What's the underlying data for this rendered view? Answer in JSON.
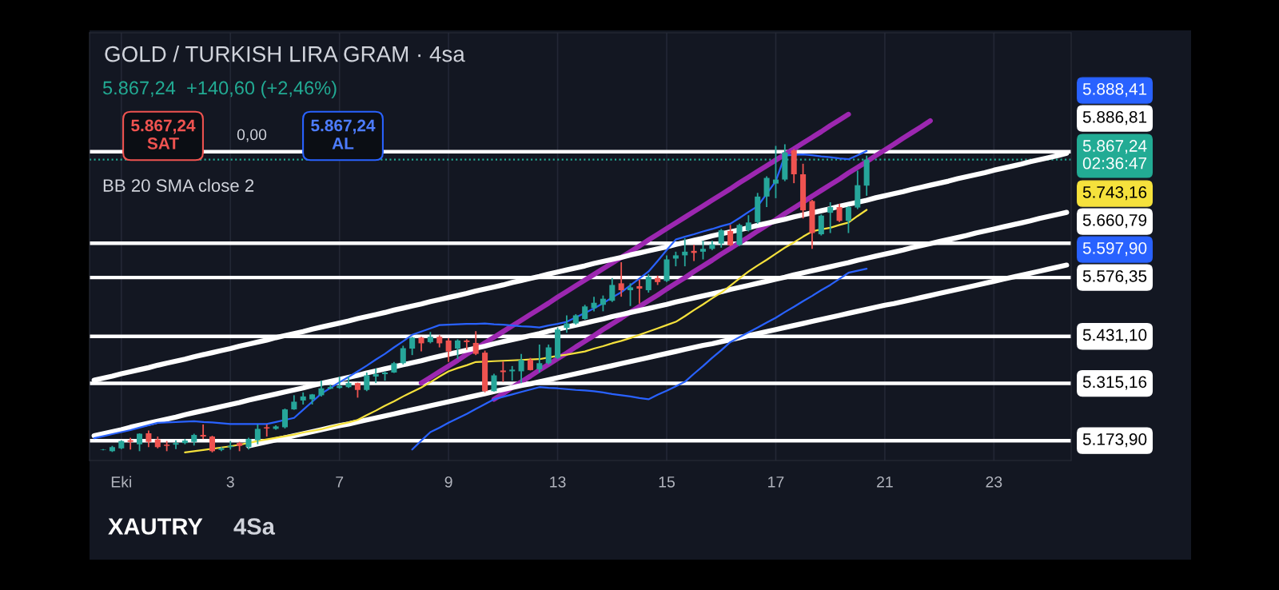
{
  "chart_data": {
    "type": "candlestick",
    "title": "GOLD / TURKISH LIRA GRAM · 4sa",
    "subtitle": "5.867,24  +140,60 (+2,46%)",
    "annotations": [
      "5.867,24\nSAT",
      "0,00",
      "5.867,24\nAL",
      "BB 20 SMA close 2",
      "XAUTRY",
      "4Sa",
      "5.888,41",
      "5.743,16",
      "5.597,90"
    ],
    "categories": [
      null,
      null,
      null,
      "Eki",
      null,
      null,
      null,
      null,
      null,
      null,
      null,
      null,
      null,
      null,
      null,
      "3",
      null,
      null,
      null,
      null,
      null,
      null,
      null,
      null,
      null,
      null,
      null,
      "7",
      null,
      null,
      null,
      null,
      null,
      null,
      null,
      null,
      null,
      null,
      null,
      "9",
      null,
      null,
      null,
      null,
      null,
      null,
      null,
      null,
      null,
      null,
      null,
      "13",
      null,
      null,
      null,
      null,
      null,
      null,
      null,
      null,
      null,
      null,
      null,
      "15",
      null,
      null,
      null,
      null,
      null,
      null,
      null,
      null,
      null,
      null,
      null,
      "17",
      null,
      null,
      null,
      null,
      null,
      null,
      null,
      null,
      null,
      null,
      null,
      "21",
      null,
      null,
      null,
      null,
      null,
      null,
      null,
      null,
      null,
      null,
      null,
      "23",
      null,
      null,
      null,
      null,
      null,
      null,
      null,
      null
    ],
    "ohlc": [
      null,
      [
        5151,
        5153,
        5150,
        5152
      ],
      [
        5148,
        5161,
        5146,
        5158
      ],
      [
        5155,
        5175,
        5153,
        5173
      ],
      [
        5175,
        5181,
        5152,
        5171
      ],
      [
        5165,
        5192,
        5148,
        5191
      ],
      [
        5192,
        5199,
        5158,
        5171
      ],
      [
        5177,
        5184,
        5155,
        5158
      ],
      [
        5164,
        5173,
        5148,
        5161
      ],
      [
        5164,
        5175,
        5153,
        5168
      ],
      [
        5168,
        5178,
        5165,
        5174
      ],
      [
        5171,
        5191,
        5162,
        5188
      ],
      [
        5188,
        5214,
        5178,
        5184
      ],
      [
        5184,
        5186,
        5145,
        5148
      ],
      [
        5151,
        5158,
        5148,
        5155
      ],
      [
        5158,
        5173,
        5152,
        5161
      ],
      [
        5168,
        5171,
        5148,
        5161
      ],
      [
        5158,
        5181,
        5152,
        5178
      ],
      [
        5175,
        5214,
        5165,
        5203
      ],
      [
        5207,
        5214,
        5184,
        5204
      ],
      [
        5203,
        5212,
        5201,
        5209
      ],
      [
        5207,
        5253,
        5204,
        5251
      ],
      [
        5251,
        5286,
        5250,
        5270
      ],
      [
        5273,
        5293,
        5263,
        5283
      ],
      [
        5276,
        5289,
        5263,
        5288
      ],
      [
        5286,
        5322,
        5283,
        5303
      ],
      [
        5302,
        5312,
        5301,
        5306
      ],
      [
        5304,
        5332,
        5302,
        5309
      ],
      [
        5306,
        5332,
        5304,
        5316
      ],
      [
        5316,
        5317,
        5280,
        5299
      ],
      [
        5299,
        5342,
        5296,
        5335
      ],
      [
        5332,
        5352,
        5316,
        5338
      ],
      [
        5338,
        5345,
        5322,
        5342
      ],
      [
        5342,
        5368,
        5341,
        5365
      ],
      [
        5365,
        5408,
        5362,
        5402
      ],
      [
        5401,
        5430,
        5385,
        5428
      ],
      [
        5428,
        5430,
        5394,
        5414
      ],
      [
        5417,
        5442,
        5414,
        5430
      ],
      [
        5430,
        5434,
        5404,
        5414
      ],
      [
        5421,
        5427,
        5368,
        5394
      ],
      [
        5401,
        5424,
        5375,
        5421
      ],
      [
        5421,
        5424,
        5398,
        5417
      ],
      [
        5415,
        5444,
        5385,
        5388
      ],
      [
        5391,
        5396,
        5293,
        5296
      ],
      [
        5296,
        5339,
        5295,
        5335
      ],
      [
        5347,
        5369,
        5319,
        5343
      ],
      [
        5345,
        5358,
        5322,
        5349
      ],
      [
        5345,
        5388,
        5316,
        5373
      ],
      [
        5373,
        5378,
        5347,
        5348
      ],
      [
        5350,
        5411,
        5342,
        5365
      ],
      [
        5365,
        5411,
        5362,
        5404
      ],
      [
        5378,
        5453,
        5375,
        5448
      ],
      [
        5452,
        5483,
        5440,
        5463
      ],
      [
        5463,
        5486,
        5460,
        5483
      ],
      [
        5474,
        5509,
        5472,
        5505
      ],
      [
        5501,
        5529,
        5493,
        5514
      ],
      [
        5509,
        5532,
        5493,
        5524
      ],
      [
        5519,
        5575,
        5516,
        5558
      ],
      [
        5562,
        5614,
        5529,
        5545
      ],
      [
        5545,
        5562,
        5506,
        5552
      ],
      [
        5555,
        5571,
        5512,
        5549
      ],
      [
        5545,
        5585,
        5539,
        5578
      ],
      [
        5575,
        5581,
        5558,
        5565
      ],
      [
        5568,
        5631,
        5565,
        5621
      ],
      [
        5623,
        5640,
        5604,
        5631
      ],
      [
        5631,
        5673,
        5604,
        5640
      ],
      [
        5642,
        5657,
        5617,
        5637
      ],
      [
        5640,
        5667,
        5621,
        5647
      ],
      [
        5647,
        5667,
        5644,
        5658
      ],
      [
        5660,
        5696,
        5650,
        5693
      ],
      [
        5691,
        5706,
        5654,
        5656
      ],
      [
        5657,
        5709,
        5654,
        5706
      ],
      [
        5693,
        5730,
        5690,
        5712
      ],
      [
        5713,
        5785,
        5709,
        5776
      ],
      [
        5776,
        5826,
        5750,
        5822
      ],
      [
        5808,
        5901,
        5772,
        5818
      ],
      [
        5818,
        5905,
        5814,
        5885
      ],
      [
        5890,
        5893,
        5809,
        5831
      ],
      [
        5831,
        5857,
        5722,
        5742
      ],
      [
        5765,
        5768,
        5647,
        5686
      ],
      [
        5683,
        5732,
        5680,
        5729
      ],
      [
        5736,
        5762,
        5686,
        5750
      ],
      [
        5750,
        5758,
        5713,
        5716
      ],
      [
        5716,
        5752,
        5686,
        5750
      ],
      [
        5749,
        5840,
        5745,
        5804
      ],
      [
        5803,
        5877,
        5778,
        5867.24
      ],
      null,
      null,
      null,
      null,
      null,
      null,
      null,
      null,
      null,
      null,
      null,
      null,
      null,
      null,
      null,
      null,
      null,
      null,
      null,
      null,
      null,
      null
    ],
    "colors": [
      null,
      "#26a69a",
      "#26a69a",
      "#26a69a",
      "#ef5350",
      "#26a69a",
      "#ef5350",
      "#ef5350",
      "#ef5350",
      "#26a69a",
      "#26a69a",
      "#26a69a",
      "#ef5350",
      "#ef5350",
      "#26a69a",
      "#26a69a",
      "#ef5350",
      "#26a69a",
      "#26a69a",
      "#ef5350",
      "#26a69a",
      "#26a69a",
      "#26a69a",
      "#26a69a",
      "#26a69a",
      "#26a69a",
      "#26a69a",
      "#26a69a",
      "#26a69a",
      "#ef5350",
      "#26a69a",
      "#26a69a",
      "#26a69a",
      "#26a69a",
      "#26a69a",
      "#26a69a",
      "#ef5350",
      "#26a69a",
      "#ef5350",
      "#ef5350",
      "#26a69a",
      "#ef5350",
      "#ef5350",
      "#ef5350",
      "#26a69a",
      "#ef5350",
      "#26a69a",
      "#26a69a",
      "#ef5350",
      "#26a69a",
      "#26a69a",
      "#26a69a",
      "#26a69a",
      "#26a69a",
      "#26a69a",
      "#26a69a",
      "#26a69a",
      "#26a69a",
      "#ef5350",
      "#26a69a",
      "#ef5350",
      "#26a69a",
      "#ef5350",
      "#26a69a",
      "#26a69a",
      "#26a69a",
      "#ef5350",
      "#26a69a",
      "#26a69a",
      "#26a69a",
      "#ef5350",
      "#26a69a",
      "#26a69a",
      "#26a69a",
      "#26a69a",
      "#26a69a",
      "#26a69a",
      "#ef5350",
      "#ef5350",
      "#ef5350",
      "#26a69a",
      "#26a69a",
      "#ef5350",
      "#26a69a",
      "#26a69a",
      "#26a69a",
      null,
      null,
      null,
      null,
      null,
      null,
      null,
      null,
      null,
      null,
      null,
      null,
      null,
      null,
      null,
      null,
      null,
      null,
      null,
      null,
      null,
      null
    ],
    "series": [
      {
        "type": "line",
        "color": "#2962ff",
        "values": [
          5180,
          5185,
          5190,
          5195,
          5200,
          5206,
          5212,
          5218,
          5219,
          5220,
          5221,
          5222,
          5220,
          5219,
          5217,
          5215,
          5215,
          5215,
          5215,
          5215,
          5220,
          5225,
          5230,
          5250,
          5270,
          5290,
          5304,
          5318,
          5331,
          5345,
          5359,
          5374,
          5388,
          5404,
          5419,
          5435,
          5443,
          5451,
          5459,
          5460,
          5461,
          5462,
          5462,
          5463,
          5461,
          5460,
          5458,
          5456,
          5455,
          5453,
          5458,
          5462,
          5467,
          5478,
          5489,
          5500,
          5513,
          5527,
          5540,
          5557,
          5574,
          5591,
          5617,
          5644,
          5670,
          5677,
          5683,
          5690,
          5696,
          5703,
          5709,
          5723,
          5738,
          5752,
          5783,
          5814,
          5877,
          5879,
          5880,
          5878,
          5875,
          5873,
          5870,
          5868,
          5878,
          5888.41,
          null,
          null,
          null,
          null,
          null,
          null,
          null,
          null,
          null,
          null,
          null,
          null,
          null,
          null,
          null,
          null,
          null,
          null,
          null,
          null,
          null,
          null
        ]
      },
      {
        "type": "line",
        "color": "#f5e13c",
        "values": [
          null,
          null,
          null,
          null,
          null,
          null,
          null,
          null,
          null,
          null,
          5145,
          5148,
          5151,
          5154,
          5157,
          5160,
          5164,
          5168,
          5173,
          5177,
          5181,
          5185,
          5189,
          5194,
          5198,
          5202,
          5208,
          5214,
          5219,
          5225,
          5237,
          5248,
          5260,
          5271,
          5283,
          5294,
          5305,
          5318,
          5332,
          5345,
          5353,
          5360,
          5368,
          5369,
          5370,
          5371,
          5372,
          5373,
          5374,
          5375,
          5379,
          5383,
          5386,
          5390,
          5394,
          5401,
          5407,
          5414,
          5420,
          5427,
          5435,
          5443,
          5451,
          5459,
          5467,
          5481,
          5496,
          5510,
          5525,
          5539,
          5556,
          5574,
          5591,
          5606,
          5620,
          5635,
          5650,
          5663,
          5677,
          5690,
          5695,
          5699,
          5706,
          5712,
          5728,
          5743.16,
          null,
          null,
          null,
          null,
          null,
          null,
          null,
          null,
          null,
          null,
          null,
          null,
          null,
          null,
          null,
          null,
          null,
          null,
          null,
          null,
          null,
          null
        ]
      },
      {
        "type": "line",
        "color": "#2962ff",
        "values": [
          null,
          null,
          null,
          null,
          null,
          null,
          null,
          null,
          null,
          null,
          null,
          null,
          null,
          null,
          null,
          null,
          null,
          null,
          null,
          null,
          null,
          null,
          null,
          null,
          null,
          null,
          null,
          null,
          null,
          null,
          null,
          null,
          null,
          null,
          null,
          5152,
          5174,
          5195,
          5206,
          5218,
          5229,
          5240,
          5252,
          5264,
          5276,
          5282,
          5288,
          5294,
          5300,
          5306,
          5304,
          5303,
          5301,
          5299,
          5298,
          5296,
          5293,
          5289,
          5286,
          5283,
          5279,
          5276,
          5287,
          5297,
          5308,
          5319,
          5339,
          5358,
          5378,
          5397,
          5417,
          5429,
          5441,
          5453,
          5465,
          5477,
          5491,
          5504,
          5518,
          5531,
          5545,
          5558,
          5573,
          5588,
          5593,
          5597.9,
          null,
          null,
          null,
          null,
          null,
          null,
          null,
          null,
          null,
          null,
          null,
          null,
          null,
          null,
          null,
          null,
          null,
          null,
          null,
          null,
          null,
          null
        ]
      },
      {
        "type": "line",
        "color": "#9c27b0",
        "values": [
          null,
          null,
          null,
          null,
          null,
          null,
          null,
          null,
          null,
          null,
          null,
          null,
          null,
          null,
          null,
          null,
          null,
          null,
          null,
          null,
          null,
          null,
          null,
          null,
          null,
          null,
          null,
          null,
          null,
          null,
          null,
          null,
          null,
          null,
          null,
          null,
          5316,
          5330,
          5344,
          5358,
          5372,
          5387,
          5401,
          5415,
          5429,
          5443,
          5457,
          5471,
          5485,
          5499,
          5513,
          5528,
          5542,
          5556,
          5570,
          5584,
          5598,
          5612,
          5626,
          5640,
          5654,
          5669,
          5683,
          5697,
          5711,
          5725,
          5739,
          5753,
          5767,
          5781,
          5795,
          5810,
          5824,
          5838,
          5852,
          5866,
          5880,
          5894,
          5908,
          5922,
          5936,
          5951,
          5965,
          5979,
          null,
          null,
          null,
          null,
          null,
          null,
          null,
          null,
          null,
          null,
          null,
          null,
          null,
          null,
          null,
          null,
          null,
          null,
          null,
          null,
          null,
          null,
          null,
          null
        ]
      },
      {
        "type": "line",
        "color": "#9c27b0",
        "values": [
          null,
          null,
          null,
          null,
          null,
          null,
          null,
          null,
          null,
          null,
          null,
          null,
          null,
          null,
          null,
          null,
          null,
          null,
          null,
          null,
          null,
          null,
          null,
          null,
          null,
          null,
          null,
          null,
          null,
          null,
          null,
          null,
          null,
          null,
          null,
          null,
          null,
          null,
          null,
          null,
          null,
          null,
          null,
          null,
          5276,
          5290,
          5305,
          5319,
          5333,
          5348,
          5362,
          5376,
          5390,
          5405,
          5419,
          5433,
          5448,
          5462,
          5476,
          5491,
          5505,
          5519,
          5533,
          5548,
          5562,
          5576,
          5591,
          5605,
          5619,
          5634,
          5648,
          5662,
          5676,
          5691,
          5705,
          5719,
          5734,
          5748,
          5762,
          5777,
          5791,
          5805,
          5819,
          5834,
          5848,
          5862,
          5877,
          5891,
          5905,
          5920,
          5934,
          5948,
          5963,
          null,
          null,
          null,
          null,
          null,
          null,
          null,
          null,
          null,
          null,
          null,
          null,
          null,
          null,
          null
        ]
      },
      {
        "type": "line",
        "color": "#ffffff",
        "values": [
          5323,
          5328,
          5333,
          5339,
          5344,
          5349,
          5354,
          5360,
          5365,
          5370,
          5375,
          5381,
          5386,
          5391,
          5396,
          5401,
          5407,
          5412,
          5417,
          5422,
          5428,
          5433,
          5438,
          5443,
          5449,
          5454,
          5459,
          5464,
          5469,
          5475,
          5480,
          5485,
          5490,
          5496,
          5501,
          5506,
          5511,
          5517,
          5522,
          5527,
          5532,
          5537,
          5543,
          5548,
          5553,
          5558,
          5564,
          5569,
          5574,
          5579,
          5585,
          5590,
          5595,
          5600,
          5605,
          5611,
          5616,
          5621,
          5626,
          5632,
          5637,
          5642,
          5647,
          5652,
          5658,
          5663,
          5668,
          5673,
          5679,
          5684,
          5689,
          5694,
          5699,
          5705,
          5710,
          5715,
          5720,
          5726,
          5731,
          5736,
          5741,
          5746,
          5752,
          5757,
          5762,
          5767,
          5773,
          5778,
          5783,
          5788,
          5794,
          5799,
          5804,
          5809,
          5814,
          5820,
          5825,
          5830,
          5835,
          5841,
          5846,
          5851,
          5856,
          5862,
          5867,
          5872,
          5877,
          5883
        ]
      },
      {
        "type": "line",
        "color": "#ffffff",
        "values": [
          5186,
          5191,
          5196,
          5201,
          5207,
          5212,
          5217,
          5222,
          5227,
          5232,
          5238,
          5243,
          5248,
          5253,
          5258,
          5263,
          5268,
          5274,
          5279,
          5284,
          5289,
          5294,
          5299,
          5304,
          5310,
          5315,
          5320,
          5325,
          5330,
          5335,
          5341,
          5346,
          5351,
          5356,
          5361,
          5366,
          5371,
          5377,
          5382,
          5387,
          5392,
          5397,
          5402,
          5407,
          5413,
          5418,
          5423,
          5428,
          5433,
          5438,
          5444,
          5449,
          5454,
          5459,
          5464,
          5469,
          5474,
          5480,
          5485,
          5490,
          5495,
          5500,
          5505,
          5510,
          5516,
          5521,
          5526,
          5531,
          5536,
          5541,
          5547,
          5552,
          5557,
          5562,
          5567,
          5572,
          5577,
          5583,
          5588,
          5593,
          5598,
          5603,
          5608,
          5613,
          5619,
          5624,
          5629,
          5634,
          5639,
          5644,
          5650,
          5655,
          5660,
          5665,
          5670,
          5675,
          5680,
          5686,
          5691,
          5696,
          5701,
          5706,
          5711,
          5716,
          5722,
          5727,
          5732,
          5737
        ]
      },
      {
        "type": "line",
        "color": "#ffffff",
        "values": [
          null,
          null,
          null,
          null,
          null,
          null,
          null,
          null,
          null,
          null,
          null,
          null,
          null,
          null,
          null,
          null,
          null,
          5161,
          5166,
          5171,
          5176,
          5181,
          5186,
          5191,
          5196,
          5201,
          5206,
          5211,
          5215,
          5220,
          5225,
          5230,
          5235,
          5240,
          5245,
          5250,
          5255,
          5260,
          5265,
          5270,
          5275,
          5280,
          5285,
          5290,
          5295,
          5300,
          5305,
          5310,
          5314,
          5319,
          5324,
          5329,
          5334,
          5339,
          5344,
          5349,
          5354,
          5359,
          5364,
          5369,
          5374,
          5379,
          5384,
          5389,
          5394,
          5399,
          5404,
          5409,
          5413,
          5418,
          5423,
          5428,
          5433,
          5438,
          5443,
          5448,
          5453,
          5458,
          5463,
          5468,
          5473,
          5478,
          5483,
          5488,
          5493,
          5498,
          5503,
          5508,
          5512,
          5517,
          5522,
          5527,
          5532,
          5537,
          5542,
          5547,
          5552,
          5557,
          5562,
          5567,
          5572,
          5577,
          5582,
          5587,
          5592,
          5597,
          5602,
          5607
        ]
      }
    ],
    "ref_lines": [
      {
        "axis": "y",
        "value": 5886.81,
        "label": "5.886,81",
        "color": "#ffffff"
      },
      {
        "axis": "y",
        "value": 5867.24,
        "label": "5.867,24\n02:36:47",
        "color": "#22ab94",
        "line_style": "dotted"
      },
      {
        "axis": "y",
        "value": 5660.79,
        "label": "5.660,79",
        "color": "#ffffff"
      },
      {
        "axis": "y",
        "value": 5576.35,
        "label": "5.576,35",
        "color": "#ffffff"
      },
      {
        "axis": "y",
        "value": 5431.1,
        "label": "5.431,10",
        "color": "#ffffff"
      },
      {
        "axis": "y",
        "value": 5315.16,
        "label": "5.315,16",
        "color": "#ffffff"
      },
      {
        "axis": "y",
        "value": 5173.9,
        "label": "5.173,90",
        "color": "#ffffff"
      }
    ],
    "ylim": [
      5125,
      6180
    ],
    "tick_labels": "x",
    "grid": "x"
  }
}
